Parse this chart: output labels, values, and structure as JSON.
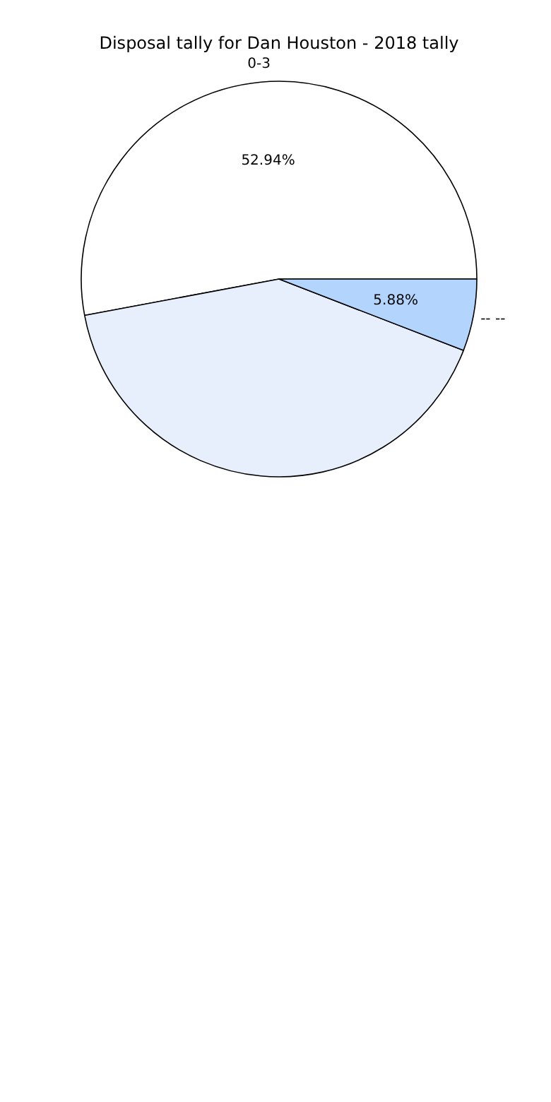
{
  "chart_data": {
    "type": "pie",
    "title": "Disposal tally for Dan Houston - 2018 tally",
    "categories": [
      "0-3",
      null,
      "-- --"
    ],
    "values": [
      52.94,
      41.18,
      5.88
    ],
    "colors": [
      "#ffffff",
      "#e8effc",
      "#b3d4fc"
    ],
    "value_labels": [
      "52.94%",
      null,
      "5.88%"
    ]
  }
}
